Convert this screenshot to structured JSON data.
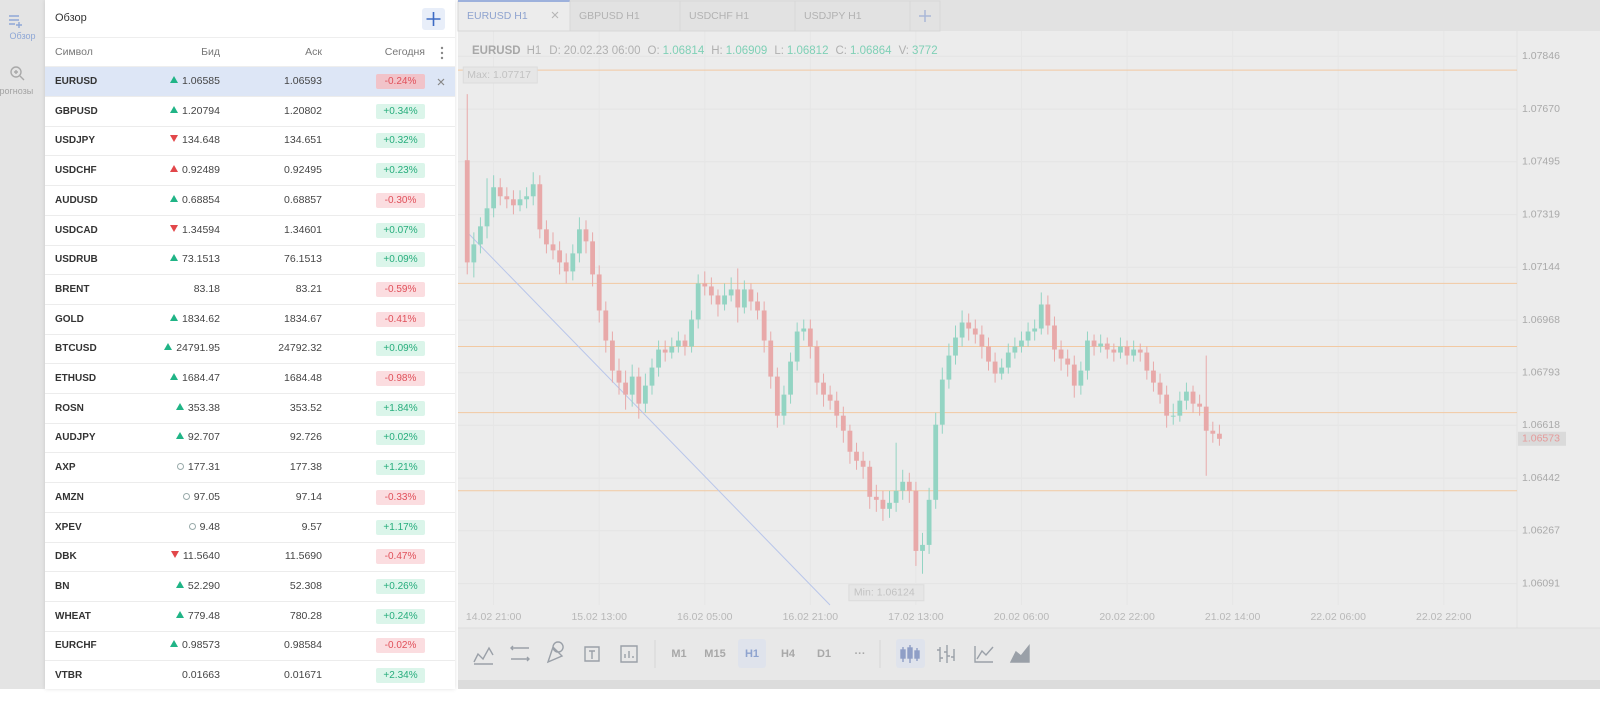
{
  "sidebar": {
    "items": [
      {
        "label": "Обзор"
      },
      {
        "label": "Прогнозы"
      }
    ],
    "active_item": 0
  },
  "watchlist": {
    "title": "Обзор",
    "columns": [
      "Символ",
      "Бид",
      "Аск",
      "Сегодня"
    ],
    "selected_row": 0,
    "trend_colors": {
      "up": "#20b486",
      "down": "#e2474a"
    },
    "rows": [
      {
        "symbol": "EURUSD",
        "trend": "up",
        "bid": "1.06585",
        "ask": "1.06593",
        "change": "-0.24%"
      },
      {
        "symbol": "GBPUSD",
        "trend": "up",
        "bid": "1.20794",
        "ask": "1.20802",
        "change": "+0.34%"
      },
      {
        "symbol": "USDJPY",
        "trend": "down",
        "bid": "134.648",
        "ask": "134.651",
        "change": "+0.32%"
      },
      {
        "symbol": "USDCHF",
        "trend": "up",
        "trend_color": "#e2474a",
        "bid": "0.92489",
        "ask": "0.92495",
        "change": "+0.23%"
      },
      {
        "symbol": "AUDUSD",
        "trend": "up",
        "bid": "0.68854",
        "ask": "0.68857",
        "change": "-0.30%"
      },
      {
        "symbol": "USDCAD",
        "trend": "down",
        "bid": "1.34594",
        "ask": "1.34601",
        "change": "+0.07%"
      },
      {
        "symbol": "USDRUB",
        "trend": "up",
        "bid": "73.1513",
        "ask": "76.1513",
        "change": "+0.09%"
      },
      {
        "symbol": "BRENT",
        "trend": "none",
        "bid": "83.18",
        "ask": "83.21",
        "change": "-0.59%"
      },
      {
        "symbol": "GOLD",
        "trend": "up",
        "bid": "1834.62",
        "ask": "1834.67",
        "change": "-0.41%"
      },
      {
        "symbol": "BTCUSD",
        "trend": "up",
        "bid": "24791.95",
        "ask": "24792.32",
        "change": "+0.09%"
      },
      {
        "symbol": "ETHUSD",
        "trend": "up",
        "bid": "1684.47",
        "ask": "1684.48",
        "change": "-0.98%"
      },
      {
        "symbol": "ROSN",
        "trend": "up",
        "bid": "353.38",
        "ask": "353.52",
        "change": "+1.84%"
      },
      {
        "symbol": "AUDJPY",
        "trend": "up",
        "bid": "92.707",
        "ask": "92.726",
        "change": "+0.02%"
      },
      {
        "symbol": "AXP",
        "trend": "closed",
        "bid": "177.31",
        "ask": "177.38",
        "change": "+1.21%"
      },
      {
        "symbol": "AMZN",
        "trend": "closed",
        "bid": "97.05",
        "ask": "97.14",
        "change": "-0.33%"
      },
      {
        "symbol": "XPEV",
        "trend": "closed",
        "bid": "9.48",
        "ask": "9.57",
        "change": "+1.17%"
      },
      {
        "symbol": "DBK",
        "trend": "down",
        "bid": "11.5640",
        "ask": "11.5690",
        "change": "-0.47%"
      },
      {
        "symbol": "BN",
        "trend": "up",
        "bid": "52.290",
        "ask": "52.308",
        "change": "+0.26%"
      },
      {
        "symbol": "WHEAT",
        "trend": "up",
        "bid": "779.48",
        "ask": "780.28",
        "change": "+0.24%"
      },
      {
        "symbol": "EURCHF",
        "trend": "up",
        "bid": "0.98573",
        "ask": "0.98584",
        "change": "-0.02%"
      },
      {
        "symbol": "VTBR",
        "trend": "none",
        "bid": "0.01663",
        "ask": "0.01671",
        "change": "+2.34%"
      }
    ]
  },
  "tabs": [
    "EURUSD H1",
    "GBPUSD H1",
    "USDCHF H1",
    "USDJPY H1"
  ],
  "active_tab": 0,
  "toolbar": {
    "timeframes": [
      "M1",
      "M15",
      "H1",
      "H4",
      "D1",
      "···"
    ],
    "active_timeframe": 2
  },
  "chart_data": {
    "type": "candlestick",
    "symbol": "EURUSD",
    "timeframe": "H1",
    "date_label": "D:",
    "date": "20.02.23 06:00",
    "ohlcv": [
      {
        "label": "O:",
        "value": "1.06814"
      },
      {
        "label": "H:",
        "value": "1.06909"
      },
      {
        "label": "L:",
        "value": "1.06812"
      },
      {
        "label": "C:",
        "value": "1.06864"
      },
      {
        "label": "V:",
        "value": "3772"
      }
    ],
    "colors": {
      "up": "#93d4c3",
      "down": "#e8a9a9"
    },
    "grid": true,
    "ylim": [
      1.0602,
      1.0792
    ],
    "yticks": [
      1.07846,
      {
        "value": 1.0767,
        "label": "1.07670"
      },
      1.07495,
      1.07319,
      1.07144,
      1.06968,
      1.06793,
      1.06618,
      1.06442,
      1.06267,
      1.06091
    ],
    "xlim": [
      -1.4,
      159.1
    ],
    "xticks": [
      {
        "value": 4,
        "label": "14.02 21:00"
      },
      {
        "value": 20,
        "label": "15.02 13:00"
      },
      {
        "value": 36,
        "label": "16.02 05:00"
      },
      {
        "value": 52,
        "label": "16.02 21:00"
      },
      {
        "value": 68,
        "label": "17.02 13:00"
      },
      {
        "value": 84,
        "label": "20.02 06:00"
      },
      {
        "value": 100,
        "label": "20.02 22:00"
      },
      {
        "value": 116,
        "label": "21.02 14:00"
      },
      {
        "value": 132,
        "label": "22.02 06:00"
      },
      {
        "value": 148,
        "label": "22.02 22:00"
      }
    ],
    "levels": [
      1.078,
      1.0709,
      1.0688,
      1.0666,
      1.064
    ],
    "level_color": "#f2c9a2",
    "max": {
      "label": "Max:",
      "value": 1.07717
    },
    "min": {
      "label": "Min:",
      "value": 1.06124
    },
    "last_price": 1.06573,
    "candles": [
      [
        1.075,
        1.0772,
        1.0712,
        1.0716
      ],
      [
        1.0716,
        1.0726,
        1.0711,
        1.0722
      ],
      [
        1.0722,
        1.0731,
        1.0719,
        1.0728
      ],
      [
        1.0728,
        1.0744,
        1.0724,
        1.0734
      ],
      [
        1.0734,
        1.0745,
        1.0731,
        1.0741
      ],
      [
        1.0741,
        1.0744,
        1.0735,
        1.0738
      ],
      [
        1.0738,
        1.0741,
        1.0734,
        1.0737
      ],
      [
        1.0737,
        1.074,
        1.0732,
        1.0735
      ],
      [
        1.0735,
        1.074,
        1.0733,
        1.0737
      ],
      [
        1.0737,
        1.0741,
        1.0734,
        1.0738
      ],
      [
        1.0738,
        1.0746,
        1.0735,
        1.0742
      ],
      [
        1.0742,
        1.0745,
        1.0724,
        1.0727
      ],
      [
        1.0727,
        1.073,
        1.0719,
        1.0722
      ],
      [
        1.0722,
        1.0726,
        1.0717,
        1.072
      ],
      [
        1.072,
        1.0723,
        1.0712,
        1.0716
      ],
      [
        1.0716,
        1.0719,
        1.0709,
        1.0713
      ],
      [
        1.0713,
        1.0722,
        1.071,
        1.0719
      ],
      [
        1.0719,
        1.0731,
        1.0716,
        1.0727
      ],
      [
        1.0727,
        1.073,
        1.0719,
        1.0723
      ],
      [
        1.0723,
        1.0726,
        1.0708,
        1.0712
      ],
      [
        1.0712,
        1.0715,
        1.0696,
        1.07
      ],
      [
        1.07,
        1.0703,
        1.0686,
        1.069
      ],
      [
        1.069,
        1.0693,
        1.0676,
        1.068
      ],
      [
        1.068,
        1.0684,
        1.0672,
        1.0676
      ],
      [
        1.0676,
        1.068,
        1.0667,
        1.0672
      ],
      [
        1.0672,
        1.0682,
        1.0668,
        1.0678
      ],
      [
        1.0678,
        1.0681,
        1.0664,
        1.0669
      ],
      [
        1.0669,
        1.0679,
        1.0666,
        1.0675
      ],
      [
        1.0675,
        1.0684,
        1.0672,
        1.0681
      ],
      [
        1.0681,
        1.069,
        1.0678,
        1.0687
      ],
      [
        1.0687,
        1.069,
        1.0683,
        1.0686
      ],
      [
        1.0686,
        1.0691,
        1.0684,
        1.0688
      ],
      [
        1.0688,
        1.0693,
        1.0686,
        1.069
      ],
      [
        1.069,
        1.0692,
        1.0685,
        1.0688
      ],
      [
        1.0688,
        1.07,
        1.0686,
        1.0697
      ],
      [
        1.0697,
        1.0712,
        1.0694,
        1.0709
      ],
      [
        1.0709,
        1.0713,
        1.0705,
        1.0708
      ],
      [
        1.0708,
        1.0711,
        1.0702,
        1.0705
      ],
      [
        1.0705,
        1.0707,
        1.0698,
        1.0702
      ],
      [
        1.0702,
        1.0709,
        1.07,
        1.0705
      ],
      [
        1.0705,
        1.0711,
        1.0703,
        1.0707
      ],
      [
        1.0707,
        1.0714,
        1.0696,
        1.0701
      ],
      [
        1.0701,
        1.071,
        1.0699,
        1.0707
      ],
      [
        1.0707,
        1.0709,
        1.07,
        1.0703
      ],
      [
        1.0703,
        1.0706,
        1.0697,
        1.07
      ],
      [
        1.07,
        1.0703,
        1.0686,
        1.069
      ],
      [
        1.069,
        1.0693,
        1.0674,
        1.0678
      ],
      [
        1.0678,
        1.0681,
        1.0661,
        1.0665
      ],
      [
        1.0665,
        1.0675,
        1.0662,
        1.0672
      ],
      [
        1.0672,
        1.0686,
        1.0669,
        1.0683
      ],
      [
        1.0683,
        1.0696,
        1.068,
        1.0693
      ],
      [
        1.0693,
        1.0697,
        1.069,
        1.0694
      ],
      [
        1.0694,
        1.0697,
        1.0684,
        1.0688
      ],
      [
        1.0688,
        1.069,
        1.0672,
        1.0676
      ],
      [
        1.0676,
        1.0679,
        1.0668,
        1.0672
      ],
      [
        1.0672,
        1.0675,
        1.0667,
        1.067
      ],
      [
        1.067,
        1.0673,
        1.0661,
        1.0665
      ],
      [
        1.0665,
        1.0668,
        1.0656,
        1.066
      ],
      [
        1.066,
        1.0662,
        1.0649,
        1.0653
      ],
      [
        1.0653,
        1.0656,
        1.0647,
        1.065
      ],
      [
        1.065,
        1.0653,
        1.0644,
        1.0648
      ],
      [
        1.0648,
        1.065,
        1.0634,
        1.0638
      ],
      [
        1.0638,
        1.0642,
        1.0633,
        1.0637
      ],
      [
        1.0637,
        1.064,
        1.063,
        1.0634
      ],
      [
        1.0634,
        1.064,
        1.0631,
        1.0636
      ],
      [
        1.0636,
        1.0656,
        1.0633,
        1.064
      ],
      [
        1.064,
        1.0647,
        1.0637,
        1.0643
      ],
      [
        1.0643,
        1.0646,
        1.0636,
        1.064
      ],
      [
        1.064,
        1.0643,
        1.0615,
        1.062
      ],
      [
        1.062,
        1.0626,
        1.06124,
        1.0622
      ],
      [
        1.0622,
        1.0641,
        1.0619,
        1.0637
      ],
      [
        1.0637,
        1.0666,
        1.0634,
        1.0662
      ],
      [
        1.0662,
        1.0681,
        1.0659,
        1.0677
      ],
      [
        1.0677,
        1.0689,
        1.0674,
        1.0685
      ],
      [
        1.0685,
        1.0695,
        1.0682,
        1.0691
      ],
      [
        1.0691,
        1.07,
        1.0688,
        1.0696
      ],
      [
        1.0696,
        1.0699,
        1.069,
        1.0694
      ],
      [
        1.0694,
        1.0697,
        1.0689,
        1.0692
      ],
      [
        1.0692,
        1.0695,
        1.0684,
        1.0688
      ],
      [
        1.0688,
        1.0691,
        1.068,
        1.0683
      ],
      [
        1.0683,
        1.0686,
        1.0676,
        1.0679
      ],
      [
        1.0679,
        1.0684,
        1.0677,
        1.0681
      ],
      [
        1.0681,
        1.0689,
        1.0679,
        1.0686
      ],
      [
        1.0686,
        1.0691,
        1.0684,
        1.0688
      ],
      [
        1.0688,
        1.0693,
        1.0686,
        1.069
      ],
      [
        1.069,
        1.0696,
        1.0688,
        1.0693
      ],
      [
        1.0693,
        1.0697,
        1.069,
        1.0694
      ],
      [
        1.0694,
        1.0706,
        1.0692,
        1.0702
      ],
      [
        1.0702,
        1.0705,
        1.0692,
        1.0695
      ],
      [
        1.0695,
        1.0698,
        1.0683,
        1.0687
      ],
      [
        1.0687,
        1.069,
        1.068,
        1.0684
      ],
      [
        1.0684,
        1.0687,
        1.0678,
        1.0682
      ],
      [
        1.0682,
        1.0685,
        1.0671,
        1.0675
      ],
      [
        1.0675,
        1.0683,
        1.0672,
        1.068
      ],
      [
        1.068,
        1.0693,
        1.0677,
        1.069
      ],
      [
        1.069,
        1.0692,
        1.0685,
        1.0688
      ],
      [
        1.0688,
        1.0692,
        1.0686,
        1.0689
      ],
      [
        1.0689,
        1.0691,
        1.0684,
        1.0687
      ],
      [
        1.0687,
        1.0689,
        1.0683,
        1.0686
      ],
      [
        1.0686,
        1.0691,
        1.0684,
        1.0688
      ],
      [
        1.0688,
        1.069,
        1.0682,
        1.0685
      ],
      [
        1.0685,
        1.069,
        1.0683,
        1.0687
      ],
      [
        1.0687,
        1.0689,
        1.0683,
        1.0686
      ],
      [
        1.0686,
        1.0688,
        1.0677,
        1.068
      ],
      [
        1.068,
        1.0683,
        1.0673,
        1.0676
      ],
      [
        1.0676,
        1.0679,
        1.0669,
        1.0672
      ],
      [
        1.0672,
        1.0675,
        1.0661,
        1.0665
      ],
      [
        1.0665,
        1.0669,
        1.0662,
        1.0665
      ],
      [
        1.0665,
        1.0673,
        1.0663,
        1.067
      ],
      [
        1.067,
        1.0676,
        1.0667,
        1.0673
      ],
      [
        1.0673,
        1.0675,
        1.0666,
        1.0669
      ],
      [
        1.0669,
        1.0672,
        1.0665,
        1.0668
      ],
      [
        1.0668,
        1.0685,
        1.0645,
        1.066
      ],
      [
        1.066,
        1.0663,
        1.0656,
        1.0659
      ],
      [
        1.0659,
        1.0662,
        1.0655,
        1.06573
      ]
    ]
  }
}
